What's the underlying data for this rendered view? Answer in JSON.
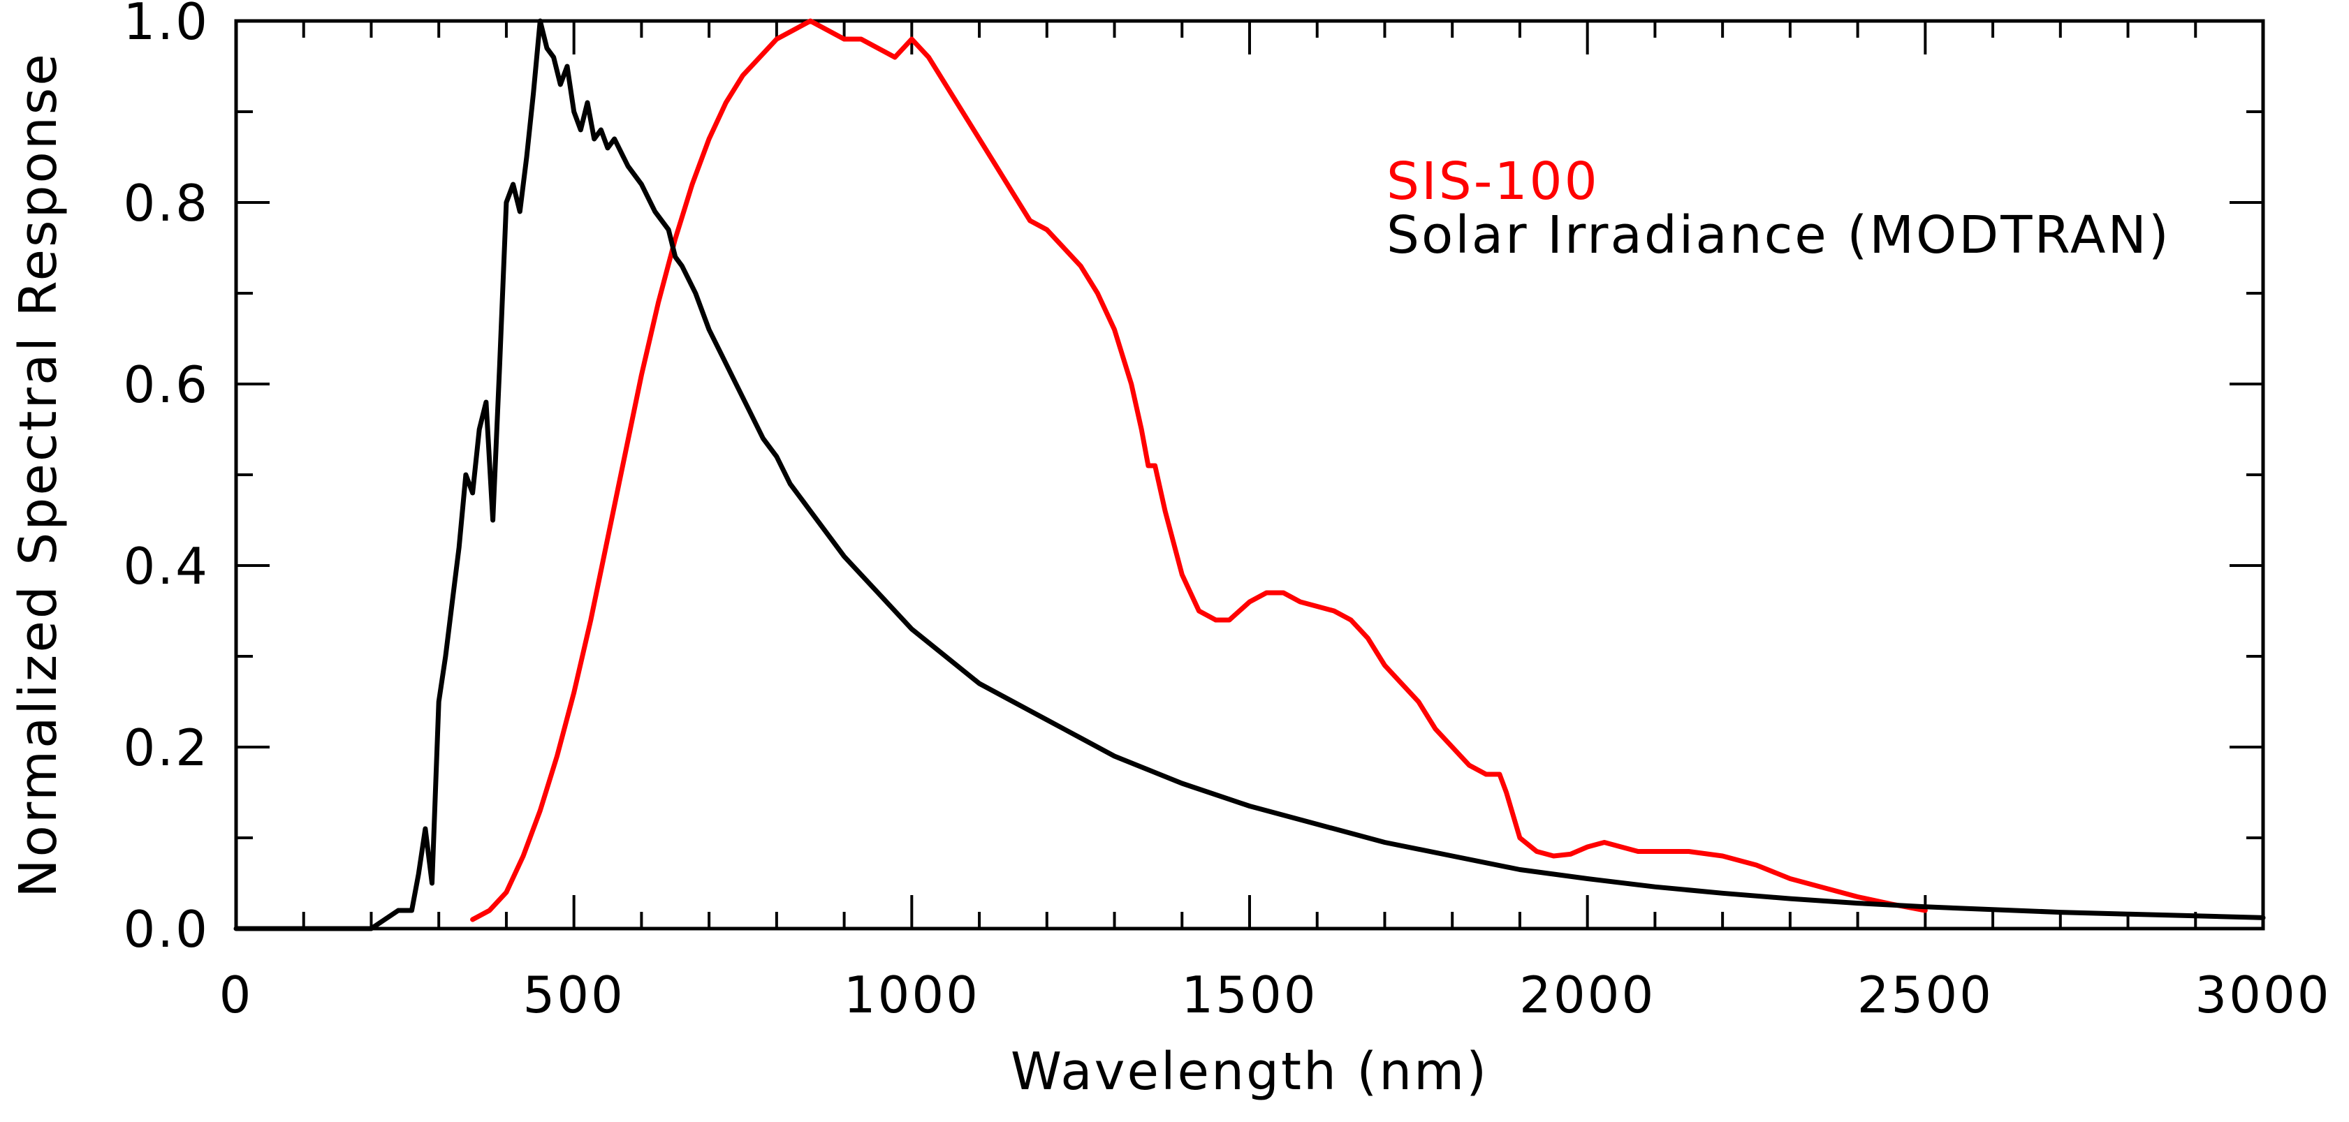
{
  "chart_data": {
    "type": "line",
    "title": "",
    "xlabel": "Wavelength (nm)",
    "ylabel": "Normalized Spectral Response",
    "xlim": [
      0,
      3000
    ],
    "ylim": [
      0,
      1.0
    ],
    "x_ticks": [
      0,
      500,
      1000,
      1500,
      2000,
      2500,
      3000
    ],
    "x_tick_labels": [
      "0",
      "500",
      "1000",
      "1500",
      "2000",
      "2500",
      "3000"
    ],
    "y_ticks": [
      0.0,
      0.2,
      0.4,
      0.6,
      0.8,
      1.0
    ],
    "y_tick_labels": [
      "0.0",
      "0.2",
      "0.4",
      "0.6",
      "0.8",
      "1.0"
    ],
    "grid": false,
    "legend_position": "top-right",
    "series": [
      {
        "name": "SIS-100",
        "color": "#ff0000",
        "x": [
          350,
          375,
          400,
          425,
          450,
          475,
          500,
          525,
          550,
          575,
          600,
          625,
          650,
          675,
          700,
          725,
          750,
          775,
          800,
          825,
          850,
          875,
          900,
          925,
          950,
          975,
          1000,
          1025,
          1050,
          1075,
          1100,
          1125,
          1150,
          1175,
          1200,
          1225,
          1250,
          1275,
          1300,
          1325,
          1340,
          1350,
          1360,
          1375,
          1400,
          1425,
          1450,
          1470,
          1500,
          1525,
          1550,
          1575,
          1600,
          1625,
          1650,
          1675,
          1700,
          1725,
          1750,
          1775,
          1800,
          1825,
          1850,
          1870,
          1880,
          1900,
          1925,
          1950,
          1975,
          2000,
          2025,
          2050,
          2075,
          2100,
          2150,
          2200,
          2250,
          2300,
          2350,
          2400,
          2450,
          2500
        ],
        "y": [
          0.01,
          0.02,
          0.04,
          0.08,
          0.13,
          0.19,
          0.26,
          0.34,
          0.43,
          0.52,
          0.61,
          0.69,
          0.76,
          0.82,
          0.87,
          0.91,
          0.94,
          0.96,
          0.98,
          0.99,
          1.0,
          0.99,
          0.98,
          0.98,
          0.97,
          0.96,
          0.98,
          0.96,
          0.93,
          0.9,
          0.87,
          0.84,
          0.81,
          0.78,
          0.77,
          0.75,
          0.73,
          0.7,
          0.66,
          0.6,
          0.55,
          0.51,
          0.51,
          0.46,
          0.39,
          0.35,
          0.34,
          0.34,
          0.36,
          0.37,
          0.37,
          0.36,
          0.355,
          0.35,
          0.34,
          0.32,
          0.29,
          0.27,
          0.25,
          0.22,
          0.2,
          0.18,
          0.17,
          0.17,
          0.15,
          0.1,
          0.085,
          0.08,
          0.082,
          0.09,
          0.095,
          0.09,
          0.085,
          0.085,
          0.085,
          0.08,
          0.07,
          0.055,
          0.045,
          0.035,
          0.027,
          0.02
        ]
      },
      {
        "name": "Solar Irradiance (MODTRAN)",
        "color": "#000000",
        "x": [
          0,
          200,
          220,
          240,
          260,
          270,
          280,
          290,
          300,
          310,
          320,
          330,
          340,
          350,
          360,
          370,
          380,
          390,
          400,
          410,
          420,
          430,
          440,
          450,
          460,
          470,
          480,
          490,
          500,
          510,
          520,
          530,
          540,
          550,
          560,
          580,
          600,
          620,
          640,
          650,
          660,
          680,
          700,
          720,
          740,
          760,
          780,
          800,
          820,
          840,
          850,
          860,
          880,
          900,
          950,
          1000,
          1050,
          1100,
          1150,
          1200,
          1250,
          1300,
          1350,
          1400,
          1500,
          1600,
          1700,
          1800,
          1900,
          2000,
          2100,
          2200,
          2300,
          2400,
          2500,
          2600,
          2700,
          2800,
          2900,
          3000
        ],
        "y": [
          0.0,
          0.0,
          0.01,
          0.02,
          0.02,
          0.06,
          0.11,
          0.05,
          0.25,
          0.3,
          0.36,
          0.42,
          0.5,
          0.48,
          0.55,
          0.58,
          0.45,
          0.62,
          0.8,
          0.82,
          0.79,
          0.85,
          0.92,
          1.0,
          0.97,
          0.96,
          0.93,
          0.95,
          0.9,
          0.88,
          0.91,
          0.87,
          0.88,
          0.86,
          0.87,
          0.84,
          0.82,
          0.79,
          0.77,
          0.74,
          0.73,
          0.7,
          0.66,
          0.63,
          0.6,
          0.57,
          0.54,
          0.52,
          0.49,
          0.47,
          0.46,
          0.45,
          0.43,
          0.41,
          0.37,
          0.33,
          0.3,
          0.27,
          0.25,
          0.23,
          0.21,
          0.19,
          0.175,
          0.16,
          0.135,
          0.115,
          0.095,
          0.08,
          0.065,
          0.055,
          0.046,
          0.039,
          0.033,
          0.028,
          0.024,
          0.021,
          0.018,
          0.016,
          0.014,
          0.012
        ]
      }
    ]
  }
}
